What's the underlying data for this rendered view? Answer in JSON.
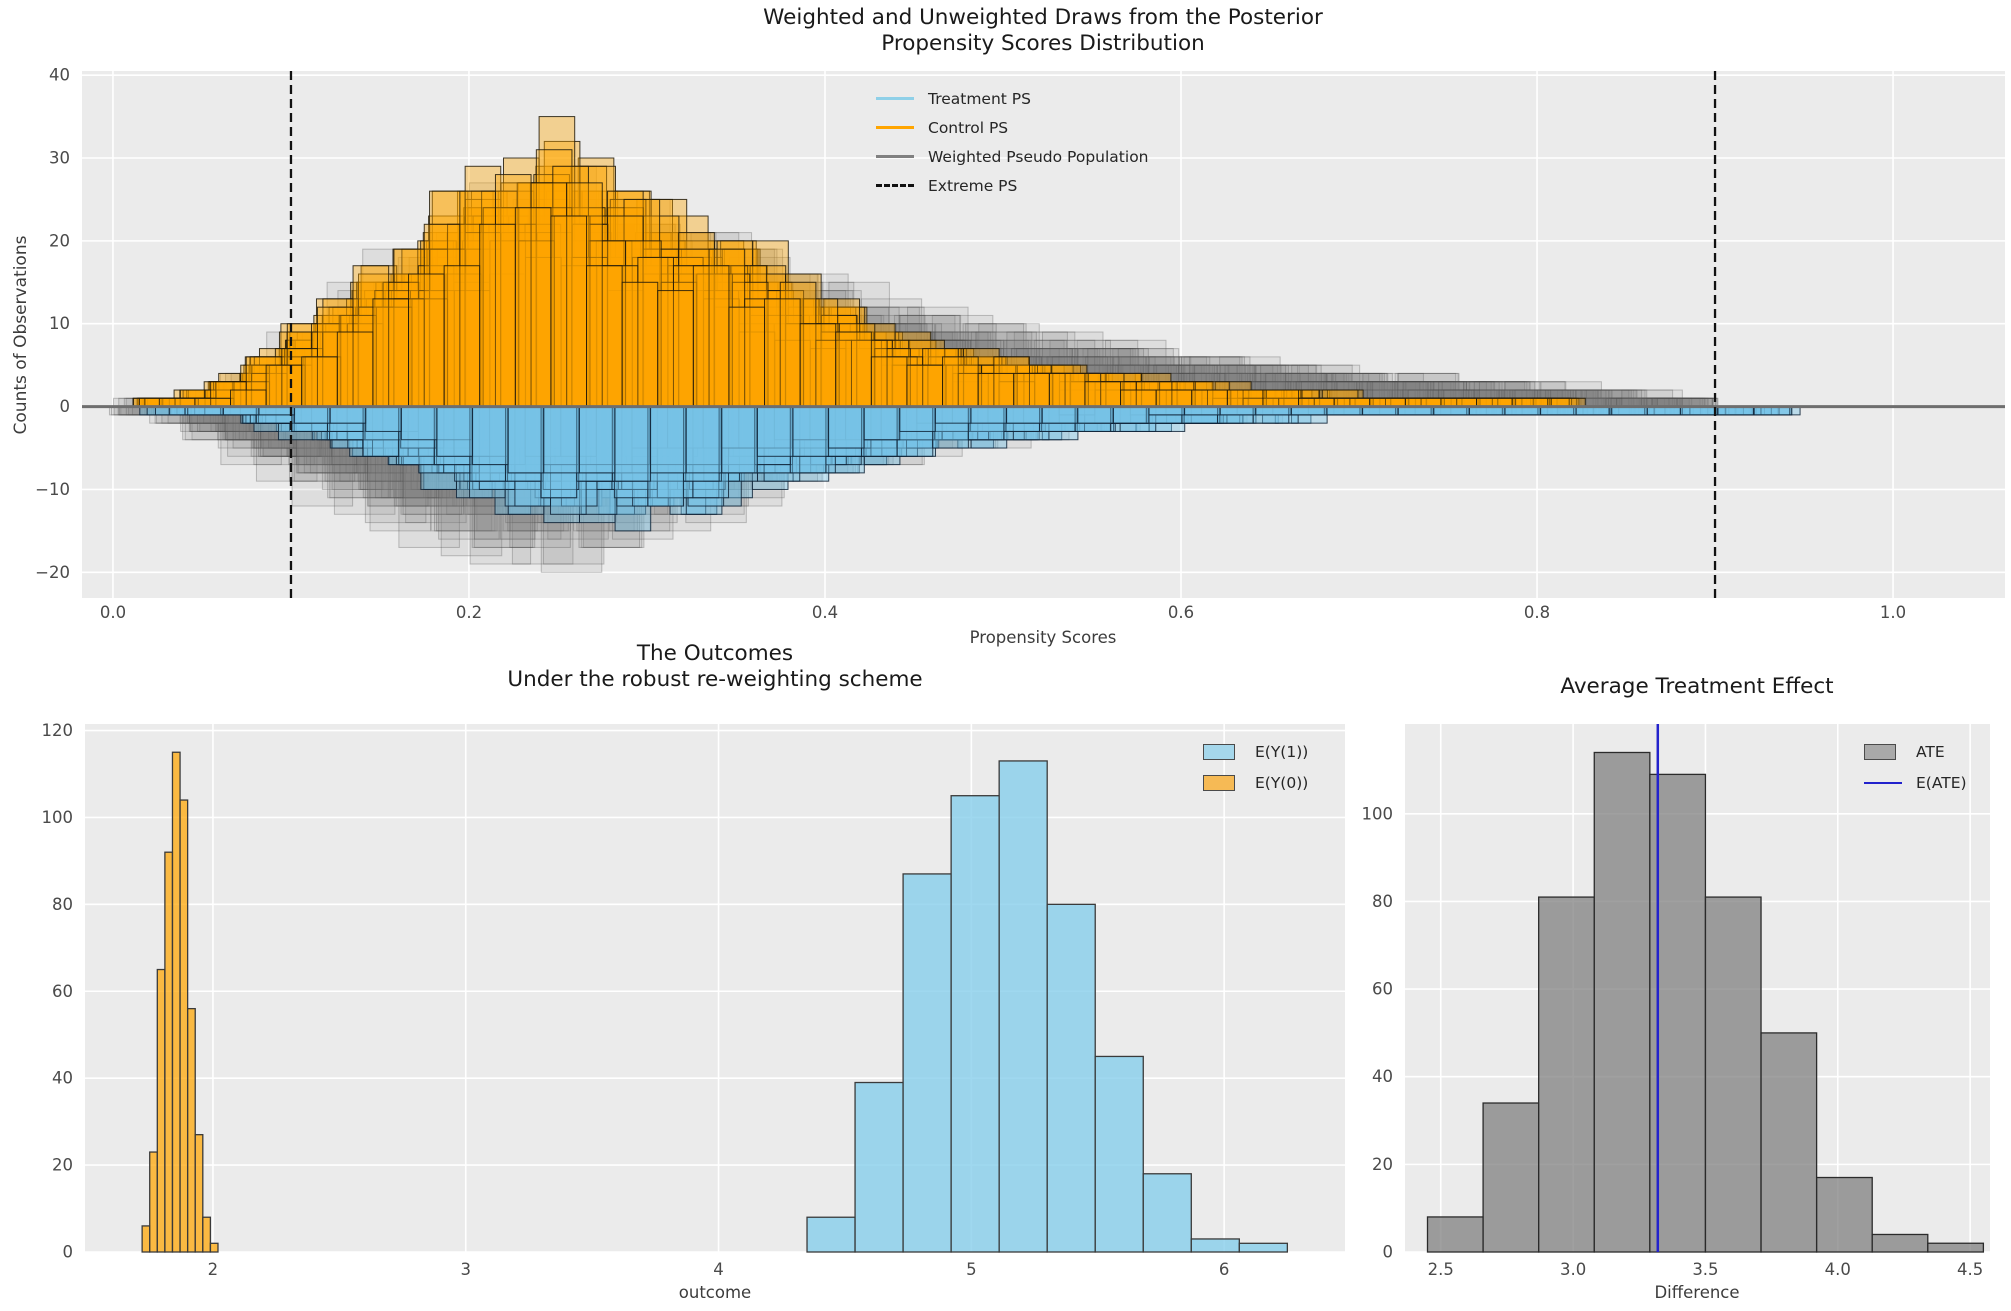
{
  "figure": {
    "bg": "#ffffff",
    "axes_bg": "#ebebeb",
    "grid_color": "#ffffff",
    "zero_line_color": "#6e6e6e",
    "tick_color": "#4a4a4a",
    "colors": {
      "control": "#FFA500",
      "treatment": "#87CEEB",
      "weighted": "#808080",
      "extreme": "#111111",
      "ate": "#808080",
      "e_ate": "#2222CC"
    }
  },
  "chart_data": [
    {
      "type": "bar",
      "id": "posterior-propensity",
      "title_line1": "Weighted and Unweighted Draws from the Posterior",
      "title_line2": "Propensity Scores Distribution",
      "xlabel": "Propensity Scores",
      "ylabel": "Counts of Observations",
      "xlim": [
        -0.0174,
        1.0629
      ],
      "ylim": [
        -23.1,
        40.5
      ],
      "xticks": [
        0.0,
        0.2,
        0.4,
        0.6,
        0.8,
        1.0
      ],
      "xtick_labels": [
        "0.0",
        "0.2",
        "0.4",
        "0.6",
        "0.8",
        "1.0"
      ],
      "yticks": [
        -20,
        -10,
        0,
        10,
        20,
        30,
        40
      ],
      "ytick_labels": [
        "−20",
        "−10",
        "0",
        "10",
        "20",
        "30",
        "40"
      ],
      "extreme_ps_lines": [
        0.1,
        0.9
      ],
      "grid_x_start": 0.03,
      "grid_x_step": 0.02,
      "posterior_draws": {
        "n_ps_draws": 30,
        "n_weighted_draws": 20,
        "ps_bin_width": 0.02,
        "weighted_bin_width": 0.034,
        "series": [
          {
            "name": "Control PS",
            "direction": "up",
            "max_count": 38,
            "scale_range": [
              0.72,
              1.16
            ],
            "mean_counts": [
              0.6,
              1.5,
              3,
              5.5,
              8.5,
              11.5,
              14.5,
              17.5,
              21,
              24,
              26,
              27,
              25.5,
              23,
              21,
              19.5,
              18,
              15.5,
              13,
              11,
              9,
              7.5,
              6.5,
              5.5,
              5,
              4.4,
              3.8,
              3.3,
              2.9,
              2.5,
              2.1,
              1.8,
              1.5,
              1.3,
              1.1,
              0.9,
              0.8,
              0.6,
              0.5,
              0.4,
              0,
              0,
              0,
              0,
              0,
              0,
              0
            ]
          },
          {
            "name": "Treatment PS",
            "direction": "down",
            "max_count": 17,
            "scale_range": [
              0.7,
              1.5
            ],
            "mean_counts": [
              0.2,
              0.4,
              0.9,
              1.5,
              2.2,
              3,
              3.9,
              4.9,
              6,
              7,
              7.8,
              8.3,
              8.5,
              8.4,
              8.1,
              7.6,
              7,
              6.3,
              5.6,
              4.9,
              4.3,
              3.7,
              3.2,
              2.8,
              2.4,
              2.1,
              1.9,
              1.7,
              1.5,
              1.4,
              1.2,
              1.1,
              1.0,
              0.9,
              0.85,
              0.8,
              0.75,
              0.7,
              0.65,
              0.6,
              0.55,
              0.5,
              0.45,
              0.4,
              0.35,
              0.3,
              0
            ]
          },
          {
            "name": "Weighted Pseudo Population (control side)",
            "direction": "up",
            "max_count": 30,
            "scale_range": [
              0.72,
              1.22
            ],
            "mean_counts": [
              0.5,
              1,
              2,
              4,
              6,
              8,
              10.5,
              13,
              15.5,
              18,
              20,
              21,
              20,
              19,
              17.5,
              16,
              14.5,
              13,
              11.5,
              10.5,
              9.5,
              9,
              8.2,
              7.5,
              7,
              6.5,
              6,
              5.5,
              5.1,
              4.8,
              4.4,
              4,
              3.7,
              3.4,
              3.1,
              2.8,
              2.5,
              2.3,
              2,
              1.8,
              1.6,
              1.4,
              1,
              0,
              0,
              0,
              0
            ]
          },
          {
            "name": "Weighted Pseudo Population (treatment side)",
            "direction": "down",
            "max_count": 21,
            "scale_range": [
              0.75,
              1.35
            ],
            "mean_counts": [
              0.8,
              1.5,
              3,
              4.5,
              6,
              7.5,
              9,
              10.5,
              11.5,
              12.5,
              13,
              13,
              12.5,
              11.5,
              10.5,
              9.5,
              8.5,
              7.5,
              6.5,
              5.5,
              4.8,
              4.2,
              3.6,
              3.1,
              2.7,
              2.3,
              2,
              1.7,
              1.5,
              1.3,
              1.1,
              0.9,
              0.8,
              0.7,
              0.6,
              0.5,
              0,
              0,
              0,
              0,
              0,
              0,
              0,
              0,
              0,
              0,
              0
            ]
          }
        ]
      },
      "legend": [
        {
          "label": "Treatment PS",
          "swatch": "line",
          "color": "#87CEEB"
        },
        {
          "label": "Control PS",
          "swatch": "line",
          "color": "#FFA500"
        },
        {
          "label": "Weighted Pseudo Population",
          "swatch": "line",
          "color": "#808080"
        },
        {
          "label": "Extreme PS",
          "swatch": "dashed-line",
          "color": "#111111"
        }
      ]
    },
    {
      "type": "bar",
      "id": "outcomes",
      "title_line1": "The Outcomes",
      "title_line2": "Under the robust re-weighting scheme",
      "xlabel": "outcome",
      "ylabel": "",
      "xlim": [
        1.494,
        6.478
      ],
      "ylim": [
        0,
        121.5
      ],
      "xticks": [
        2,
        3,
        4,
        5,
        6
      ],
      "xtick_labels": [
        "2",
        "3",
        "4",
        "5",
        "6"
      ],
      "yticks": [
        0,
        20,
        40,
        60,
        80,
        100,
        120
      ],
      "ytick_labels": [
        "0",
        "20",
        "40",
        "60",
        "80",
        "100",
        "120"
      ],
      "series": [
        {
          "name": "E(Y(1))",
          "color": "#87CEEB",
          "bin_start": 4.35,
          "bin_width": 0.19,
          "counts": [
            8,
            39,
            87,
            105,
            113,
            80,
            45,
            18,
            3,
            2
          ]
        },
        {
          "name": "E(Y(0))",
          "color": "#FFA500",
          "bin_start": 1.72,
          "bin_width": 0.03,
          "counts": [
            6,
            23,
            65,
            92,
            115,
            104,
            56,
            27,
            8,
            2
          ]
        }
      ],
      "legend": [
        {
          "label": "E(Y(1))",
          "swatch": "box",
          "color": "#A5D7EB"
        },
        {
          "label": "E(Y(0))",
          "swatch": "box",
          "color": "#F6BA55"
        }
      ]
    },
    {
      "type": "bar",
      "id": "ate",
      "title": "Average Treatment Effect",
      "xlabel": "Difference",
      "ylabel": "",
      "xlim": [
        2.365,
        4.575
      ],
      "ylim": [
        0,
        120.5
      ],
      "xticks": [
        2.5,
        3.0,
        3.5,
        4.0,
        4.5
      ],
      "xtick_labels": [
        "2.5",
        "3.0",
        "3.5",
        "4.0",
        "4.5"
      ],
      "yticks": [
        0,
        20,
        40,
        60,
        80,
        100
      ],
      "ytick_labels": [
        "0",
        "20",
        "40",
        "60",
        "80",
        "100"
      ],
      "series": [
        {
          "name": "ATE",
          "color": "#808080",
          "bin_start": 2.45,
          "bin_width": 0.21,
          "counts": [
            8,
            34,
            81,
            114,
            109,
            81,
            50,
            17,
            4,
            2
          ]
        }
      ],
      "e_ate": 3.32,
      "legend": [
        {
          "label": "ATE",
          "swatch": "box",
          "color": "#A9A9A9"
        },
        {
          "label": "E(ATE)",
          "swatch": "line",
          "color": "#2222CC"
        }
      ]
    }
  ]
}
